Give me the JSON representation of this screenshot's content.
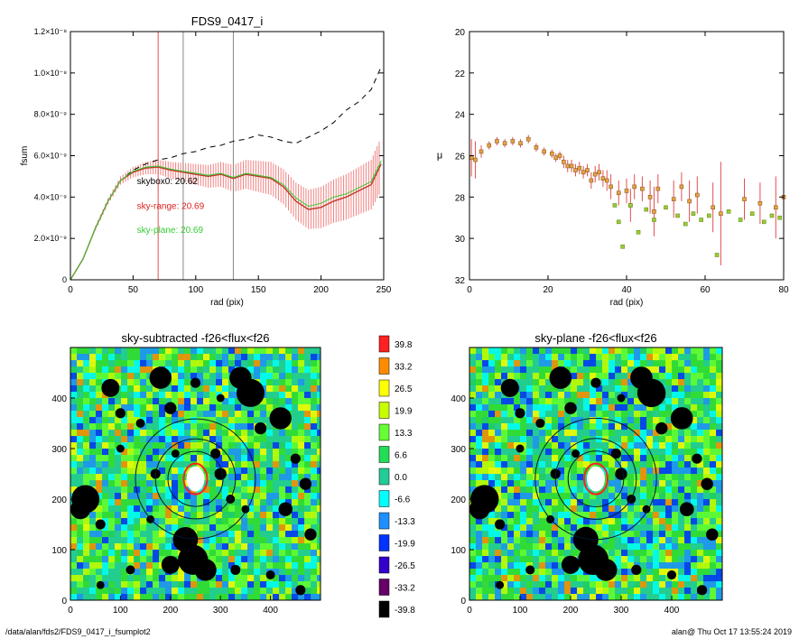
{
  "footer": {
    "path": "/data/alan/fds2/FDS9_0417_i_fsumplot2",
    "stamp": "alan@  Thu Oct 17 13:55:24 2019"
  },
  "colors": {
    "curve_main": "#c0392b",
    "band": "#f08080",
    "dashed": "#000000",
    "green": "#33cc33",
    "marker_fill": "#e8a33d",
    "marker_edge": "#8b5a2b",
    "vline_red": "#e05050",
    "vline_gray": "#888888"
  },
  "chart_data": [
    {
      "type": "line",
      "title": "FDS9_0417_i",
      "xlabel": "rad (pix)",
      "ylabel": "fsum",
      "xlim": [
        0,
        250
      ],
      "ylim": [
        0,
        1.2e-08
      ],
      "xticks": [
        0,
        50,
        100,
        150,
        200,
        250
      ],
      "yticks": [
        {
          "v": 0,
          "label": "0"
        },
        {
          "v": 2e-09,
          "label": "2.0×10⁻⁹"
        },
        {
          "v": 4e-09,
          "label": "4.0×10⁻⁹"
        },
        {
          "v": 6e-09,
          "label": "6.0×10⁻⁹"
        },
        {
          "v": 8e-09,
          "label": "8.0×10⁻⁹"
        },
        {
          "v": 1e-08,
          "label": "1.0×10⁻⁸"
        },
        {
          "v": 1.2e-08,
          "label": "1.2×10⁻⁸"
        }
      ],
      "vlines": [
        {
          "x": 70,
          "color": "red"
        },
        {
          "x": 90,
          "color": "gray"
        },
        {
          "x": 130,
          "color": "gray"
        }
      ],
      "annotations": [
        {
          "text": "skybox0: 20.62",
          "x": 43,
          "y": 4.8e-09,
          "color": "black"
        },
        {
          "text": "sky-range: 20.69",
          "x": 43,
          "y": 3.6e-09,
          "color": "red"
        },
        {
          "text": "sky-plane: 20.69",
          "x": 43,
          "y": 2.45e-09,
          "color": "green"
        }
      ],
      "series": [
        {
          "role": "skybox0",
          "style": "dashed",
          "x": [
            0,
            10,
            20,
            30,
            40,
            50,
            60,
            70,
            80,
            90,
            100,
            110,
            120,
            130,
            140,
            150,
            160,
            170,
            180,
            190,
            200,
            210,
            220,
            230,
            240,
            248
          ],
          "values": [
            0,
            1e-09,
            2.5e-09,
            3.8e-09,
            4.8e-09,
            5.3e-09,
            5.6e-09,
            5.8e-09,
            5.9e-09,
            6.1e-09,
            6.2e-09,
            6.4e-09,
            6.5e-09,
            6.7e-09,
            6.8e-09,
            7e-09,
            6.9e-09,
            6.7e-09,
            6.6e-09,
            6.9e-09,
            7.2e-09,
            7.6e-09,
            8.2e-09,
            8.6e-09,
            9.2e-09,
            1.03e-08
          ]
        },
        {
          "role": "sky-range",
          "style": "solid",
          "x": [
            0,
            10,
            20,
            30,
            40,
            50,
            60,
            70,
            80,
            90,
            100,
            110,
            120,
            130,
            140,
            150,
            160,
            170,
            180,
            190,
            200,
            210,
            220,
            230,
            240,
            248
          ],
          "values": [
            0,
            1e-09,
            2.5e-09,
            3.8e-09,
            4.8e-09,
            5.2e-09,
            5.4e-09,
            5.45e-09,
            5.3e-09,
            5.2e-09,
            5.1e-09,
            5e-09,
            5.1e-09,
            4.9e-09,
            5.1e-09,
            5e-09,
            4.9e-09,
            4.5e-09,
            3.8e-09,
            3.4e-09,
            3.5e-09,
            3.8e-09,
            4e-09,
            4.3e-09,
            4.6e-09,
            5.6e-09
          ],
          "err": [
            0,
            5e-11,
            1e-10,
            1.5e-10,
            2e-10,
            2.5e-10,
            3e-10,
            3.5e-10,
            4e-10,
            4.5e-10,
            5e-10,
            5.5e-10,
            6e-10,
            6.5e-10,
            7e-10,
            7.5e-10,
            8e-10,
            8.5e-10,
            9e-10,
            9.5e-10,
            1e-09,
            1.05e-09,
            1.1e-09,
            1.15e-09,
            1.2e-09,
            1.3e-09
          ]
        },
        {
          "role": "sky-plane",
          "style": "solid",
          "x": [
            0,
            10,
            20,
            30,
            40,
            50,
            60,
            70,
            80,
            90,
            100,
            110,
            120,
            130,
            140,
            150,
            160,
            170,
            180,
            190,
            200,
            210,
            220,
            230,
            240,
            248
          ],
          "values": [
            0,
            1e-09,
            2.5e-09,
            3.8e-09,
            4.8e-09,
            5.25e-09,
            5.45e-09,
            5.5e-09,
            5.35e-09,
            5.25e-09,
            5.15e-09,
            5.05e-09,
            5.15e-09,
            4.95e-09,
            5.15e-09,
            5.05e-09,
            4.95e-09,
            4.6e-09,
            3.95e-09,
            3.55e-09,
            3.7e-09,
            4e-09,
            4.15e-09,
            4.45e-09,
            4.75e-09,
            5.75e-09
          ]
        }
      ]
    },
    {
      "type": "scatter",
      "title": "",
      "xlabel": "rad (pix)",
      "ylabel": "μ",
      "xlim": [
        0,
        80
      ],
      "ylim": [
        32,
        20
      ],
      "xticks": [
        0,
        20,
        40,
        60,
        80
      ],
      "yticks": [
        20,
        22,
        24,
        26,
        28,
        30,
        32
      ],
      "series": [
        {
          "role": "sky-range",
          "x": [
            0.5,
            1.5,
            3,
            5,
            7,
            9,
            11,
            13,
            15,
            17,
            19,
            21,
            22,
            23,
            24,
            25,
            26,
            27,
            28,
            29,
            30,
            31,
            32,
            33,
            34,
            35,
            36,
            38,
            40,
            41,
            42,
            44,
            46,
            47,
            48,
            52,
            54,
            56,
            58,
            62,
            64,
            70,
            74,
            78,
            80
          ],
          "values": [
            26.1,
            26.2,
            25.8,
            25.5,
            25.3,
            25.4,
            25.3,
            25.4,
            25.2,
            25.6,
            25.8,
            25.9,
            26.1,
            26.0,
            26.3,
            26.5,
            26.5,
            26.7,
            26.6,
            26.8,
            26.7,
            27.2,
            26.9,
            26.8,
            27.1,
            27.2,
            27.5,
            27.8,
            27.7,
            28.4,
            27.5,
            27.6,
            28.0,
            28.7,
            27.6,
            28.1,
            27.5,
            28.2,
            27.9,
            28.5,
            28.8,
            28.1,
            28.3,
            28.5,
            28.0
          ],
          "err": [
            0.9,
            0.9,
            0.3,
            0.2,
            0.2,
            0.2,
            0.2,
            0.2,
            0.2,
            0.2,
            0.2,
            0.2,
            0.2,
            0.2,
            0.3,
            0.3,
            0.3,
            0.3,
            0.3,
            0.3,
            0.3,
            0.4,
            0.4,
            0.4,
            0.4,
            0.5,
            0.6,
            0.6,
            0.6,
            0.8,
            0.6,
            0.6,
            0.8,
            1.2,
            0.7,
            0.9,
            0.7,
            1.0,
            0.9,
            1.2,
            2.5,
            1.0,
            1.0,
            1.5,
            1.0
          ]
        },
        {
          "role": "sky-plane",
          "x": [
            37,
            38,
            39,
            41,
            43,
            45,
            47,
            50,
            53,
            55,
            57,
            59,
            61,
            63,
            66,
            69,
            72,
            75,
            77,
            79
          ],
          "values": [
            28.4,
            29.2,
            30.4,
            28.4,
            29.7,
            28.6,
            29.1,
            28.5,
            28.9,
            29.3,
            28.8,
            29.1,
            28.9,
            30.8,
            28.7,
            29.1,
            28.8,
            29.2,
            28.9,
            29.0
          ],
          "err": [
            0,
            0,
            0,
            0,
            0,
            0,
            0,
            0,
            0,
            0,
            0,
            0,
            0,
            0,
            0,
            0,
            0,
            0,
            0,
            0
          ]
        }
      ]
    },
    {
      "type": "heatmap",
      "title": "sky-subtracted -f26<flux<f26",
      "xlim": [
        0,
        500
      ],
      "ylim": [
        0,
        500
      ],
      "xticks": [
        0,
        100,
        200,
        300,
        400
      ],
      "yticks": [
        0,
        100,
        200,
        300,
        400
      ],
      "circles_radius": [
        55,
        80,
        120
      ]
    },
    {
      "type": "heatmap",
      "title": "sky-plane -f26<flux<f26",
      "xlim": [
        0,
        500
      ],
      "ylim": [
        0,
        500
      ],
      "xticks": [
        0,
        100,
        200,
        300,
        400
      ],
      "yticks": [
        0,
        100,
        200,
        300,
        400
      ],
      "circles_radius": [
        55,
        80,
        120
      ]
    },
    {
      "type": "table",
      "role": "colorbar",
      "labels": [
        "39.8",
        "33.2",
        "26.5",
        "19.9",
        "13.3",
        "6.6",
        "0.0",
        "-6.6",
        "-13.3",
        "-19.9",
        "-26.5",
        "-33.2",
        "-39.8"
      ],
      "colors": [
        "#ff2020",
        "#ff8c00",
        "#ffff00",
        "#c8ff00",
        "#66ff33",
        "#22dd55",
        "#22cc99",
        "#00ffff",
        "#1e90ff",
        "#0033ff",
        "#3300cc",
        "#660066",
        "#000000"
      ]
    }
  ]
}
